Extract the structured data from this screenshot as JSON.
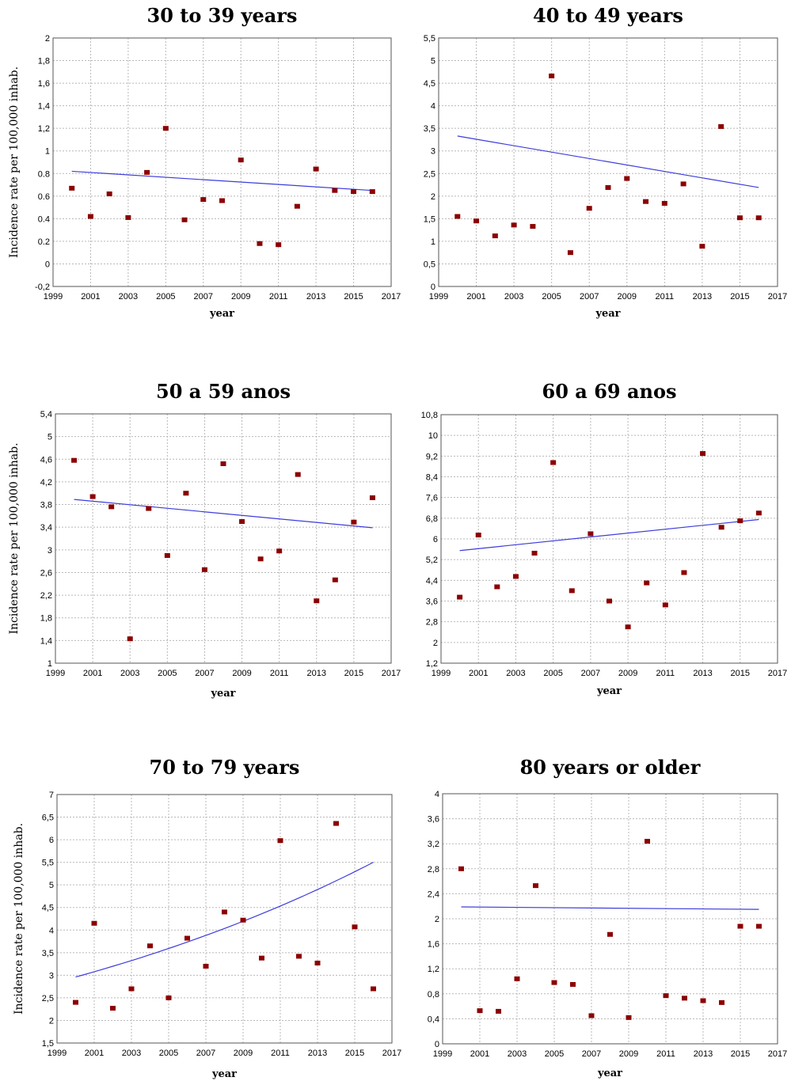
{
  "chart_data": [
    {
      "type": "scatter",
      "title": "30 to 39 years",
      "xlabel": "year",
      "ylabel": "Incidence rate per 100,000 inhab.",
      "xlim": [
        1999,
        2017
      ],
      "ylim": [
        -0.2,
        2
      ],
      "x_ticks": [
        1999,
        2001,
        2003,
        2005,
        2007,
        2009,
        2011,
        2013,
        2015,
        2017
      ],
      "y_ticks": [
        -0.2,
        0,
        0.2,
        0.4,
        0.6,
        0.8,
        1,
        1.2,
        1.4,
        1.6,
        1.8,
        2
      ],
      "y_tick_labels": [
        "-0,2",
        "0",
        "0.2",
        "0.4",
        "0.6",
        "0.8",
        "1",
        "1,2",
        "1,4",
        "1,6",
        "1,8",
        "2"
      ],
      "x": [
        2000,
        2001,
        2002,
        2003,
        2004,
        2005,
        2006,
        2007,
        2008,
        2009,
        2010,
        2011,
        2012,
        2013,
        2014,
        2015,
        2016
      ],
      "y": [
        0.67,
        0.42,
        0.62,
        0.41,
        0.81,
        1.2,
        0.39,
        0.57,
        0.56,
        0.92,
        0.18,
        0.17,
        0.51,
        0.84,
        0.65,
        0.64,
        0.64
      ],
      "trend": {
        "type": "linear",
        "x": [
          2000,
          2016
        ],
        "y": [
          0.82,
          0.65
        ]
      },
      "grid": true
    },
    {
      "type": "scatter",
      "title": "40 to 49 years",
      "xlabel": "year",
      "ylabel": "",
      "xlim": [
        1999,
        2017
      ],
      "ylim": [
        0,
        5.5
      ],
      "x_ticks": [
        1999,
        2001,
        2003,
        2005,
        2007,
        2009,
        2011,
        2013,
        2015,
        2017
      ],
      "y_ticks": [
        0,
        0.5,
        1,
        1.5,
        2,
        2.5,
        3,
        3.5,
        4,
        4.5,
        5,
        5.5
      ],
      "y_tick_labels": [
        "0",
        "0,5",
        "1",
        "1,5",
        "2",
        "2,5",
        "3",
        "3,5",
        "4",
        "4,5",
        "5",
        "5,5"
      ],
      "x": [
        2000,
        2001,
        2002,
        2003,
        2004,
        2005,
        2006,
        2007,
        2008,
        2009,
        2010,
        2011,
        2012,
        2013,
        2014,
        2015,
        2016
      ],
      "y": [
        1.55,
        1.45,
        1.12,
        1.36,
        1.33,
        4.66,
        0.75,
        1.73,
        2.19,
        2.39,
        1.88,
        1.84,
        2.27,
        0.89,
        3.54,
        1.52,
        1.52
      ],
      "trend": {
        "type": "linear",
        "x": [
          2000,
          2016
        ],
        "y": [
          3.33,
          2.19
        ]
      },
      "grid": true
    },
    {
      "type": "scatter",
      "title": "50 a 59 anos",
      "xlabel": "year",
      "ylabel": "Incidence rate per 100,000 inhab.",
      "xlim": [
        1999,
        2017
      ],
      "ylim": [
        1,
        5.4
      ],
      "x_ticks": [
        1999,
        2001,
        2003,
        2005,
        2007,
        2009,
        2011,
        2013,
        2015,
        2017
      ],
      "y_ticks": [
        1,
        1.4,
        1.8,
        2.2,
        2.6,
        3,
        3.4,
        3.8,
        4.2,
        4.6,
        5,
        5.4
      ],
      "y_tick_labels": [
        "1",
        "1,4",
        "1,8",
        "2,2",
        "2,6",
        "3",
        "3,4",
        "3,8",
        "4,2",
        "4,6",
        "5",
        "5,4"
      ],
      "x": [
        2000,
        2001,
        2002,
        2003,
        2004,
        2005,
        2006,
        2007,
        2008,
        2009,
        2010,
        2011,
        2012,
        2013,
        2014,
        2015,
        2016
      ],
      "y": [
        4.58,
        3.94,
        3.76,
        1.43,
        3.73,
        2.9,
        4.0,
        2.65,
        4.52,
        3.5,
        2.84,
        2.98,
        4.33,
        2.1,
        2.47,
        3.49,
        3.92
      ],
      "trend": {
        "type": "linear",
        "x": [
          2000,
          2016
        ],
        "y": [
          3.89,
          3.39
        ]
      },
      "grid": true
    },
    {
      "type": "scatter",
      "title": "60 a 69 anos",
      "xlabel": "year",
      "ylabel": "",
      "xlim": [
        1999,
        2017
      ],
      "ylim": [
        1.2,
        10.8
      ],
      "x_ticks": [
        1999,
        2001,
        2003,
        2005,
        2007,
        2009,
        2011,
        2013,
        2015,
        2017
      ],
      "y_ticks": [
        1.2,
        2,
        2.8,
        3.6,
        4.4,
        5.2,
        6,
        6.8,
        7.6,
        8.4,
        9.2,
        10,
        10.8
      ],
      "y_tick_labels": [
        "1,2",
        "2",
        "2,8",
        "3,6",
        "4,4",
        "5,2",
        "6",
        "6,8",
        "7,6",
        "8,4",
        "9,2",
        "10",
        "10,8"
      ],
      "x": [
        2000,
        2001,
        2002,
        2003,
        2004,
        2005,
        2006,
        2007,
        2008,
        2009,
        2010,
        2011,
        2012,
        2013,
        2014,
        2015,
        2016
      ],
      "y": [
        3.75,
        6.15,
        4.15,
        4.55,
        5.45,
        8.95,
        4.0,
        6.2,
        3.6,
        2.6,
        4.3,
        3.45,
        4.7,
        9.3,
        6.45,
        6.7,
        7.0
      ],
      "trend": {
        "type": "linear",
        "x": [
          2000,
          2016
        ],
        "y": [
          5.55,
          6.75
        ]
      },
      "grid": true
    },
    {
      "type": "scatter",
      "title": "70 to 79 years",
      "xlabel": "year",
      "ylabel": "Incidence rate per 100,000 inhab.",
      "xlim": [
        1999,
        2017
      ],
      "ylim": [
        1.5,
        7
      ],
      "x_ticks": [
        1999,
        2001,
        2003,
        2005,
        2007,
        2009,
        2011,
        2013,
        2015,
        2017
      ],
      "y_ticks": [
        1.5,
        2,
        2.5,
        3,
        3.5,
        4,
        4.5,
        5,
        5.5,
        6,
        6.5,
        7
      ],
      "y_tick_labels": [
        "1,5",
        "2",
        "2,5",
        "3",
        "3,5",
        "4",
        "4,5",
        "5",
        "5,5",
        "6",
        "6,5",
        "7"
      ],
      "x": [
        2000,
        2001,
        2002,
        2003,
        2004,
        2005,
        2006,
        2007,
        2008,
        2009,
        2010,
        2011,
        2012,
        2013,
        2014,
        2015,
        2016
      ],
      "y": [
        2.4,
        4.15,
        2.27,
        2.7,
        3.65,
        2.5,
        3.82,
        3.2,
        4.4,
        4.22,
        3.38,
        5.98,
        3.42,
        3.27,
        6.36,
        4.07,
        2.7
      ],
      "trend": {
        "type": "exponential",
        "x": [
          2000,
          2016
        ],
        "y": [
          2.96,
          5.5
        ]
      },
      "grid": true
    },
    {
      "type": "scatter",
      "title": "80 years or older",
      "xlabel": "year",
      "ylabel": "",
      "xlim": [
        1999,
        2017
      ],
      "ylim": [
        0,
        4
      ],
      "x_ticks": [
        1999,
        2001,
        2003,
        2005,
        2007,
        2009,
        2011,
        2013,
        2015,
        2017
      ],
      "y_ticks": [
        0,
        0.4,
        0.8,
        1.2,
        1.6,
        2,
        2.4,
        2.8,
        3.2,
        3.6,
        4
      ],
      "y_tick_labels": [
        "0",
        "0,4",
        "0,8",
        "1,2",
        "1,6",
        "2",
        "2,4",
        "2,8",
        "3,2",
        "3,6",
        "4"
      ],
      "x": [
        2000,
        2001,
        2002,
        2003,
        2004,
        2005,
        2006,
        2007,
        2008,
        2009,
        2010,
        2011,
        2012,
        2013,
        2014,
        2015,
        2016
      ],
      "y": [
        2.8,
        0.53,
        0.52,
        1.04,
        2.53,
        0.98,
        0.95,
        0.45,
        1.75,
        0.42,
        3.24,
        0.77,
        0.73,
        0.69,
        0.66,
        1.88,
        1.88
      ],
      "trend": {
        "type": "linear",
        "x": [
          2000,
          2016
        ],
        "y": [
          2.19,
          2.15
        ]
      },
      "grid": true
    }
  ]
}
